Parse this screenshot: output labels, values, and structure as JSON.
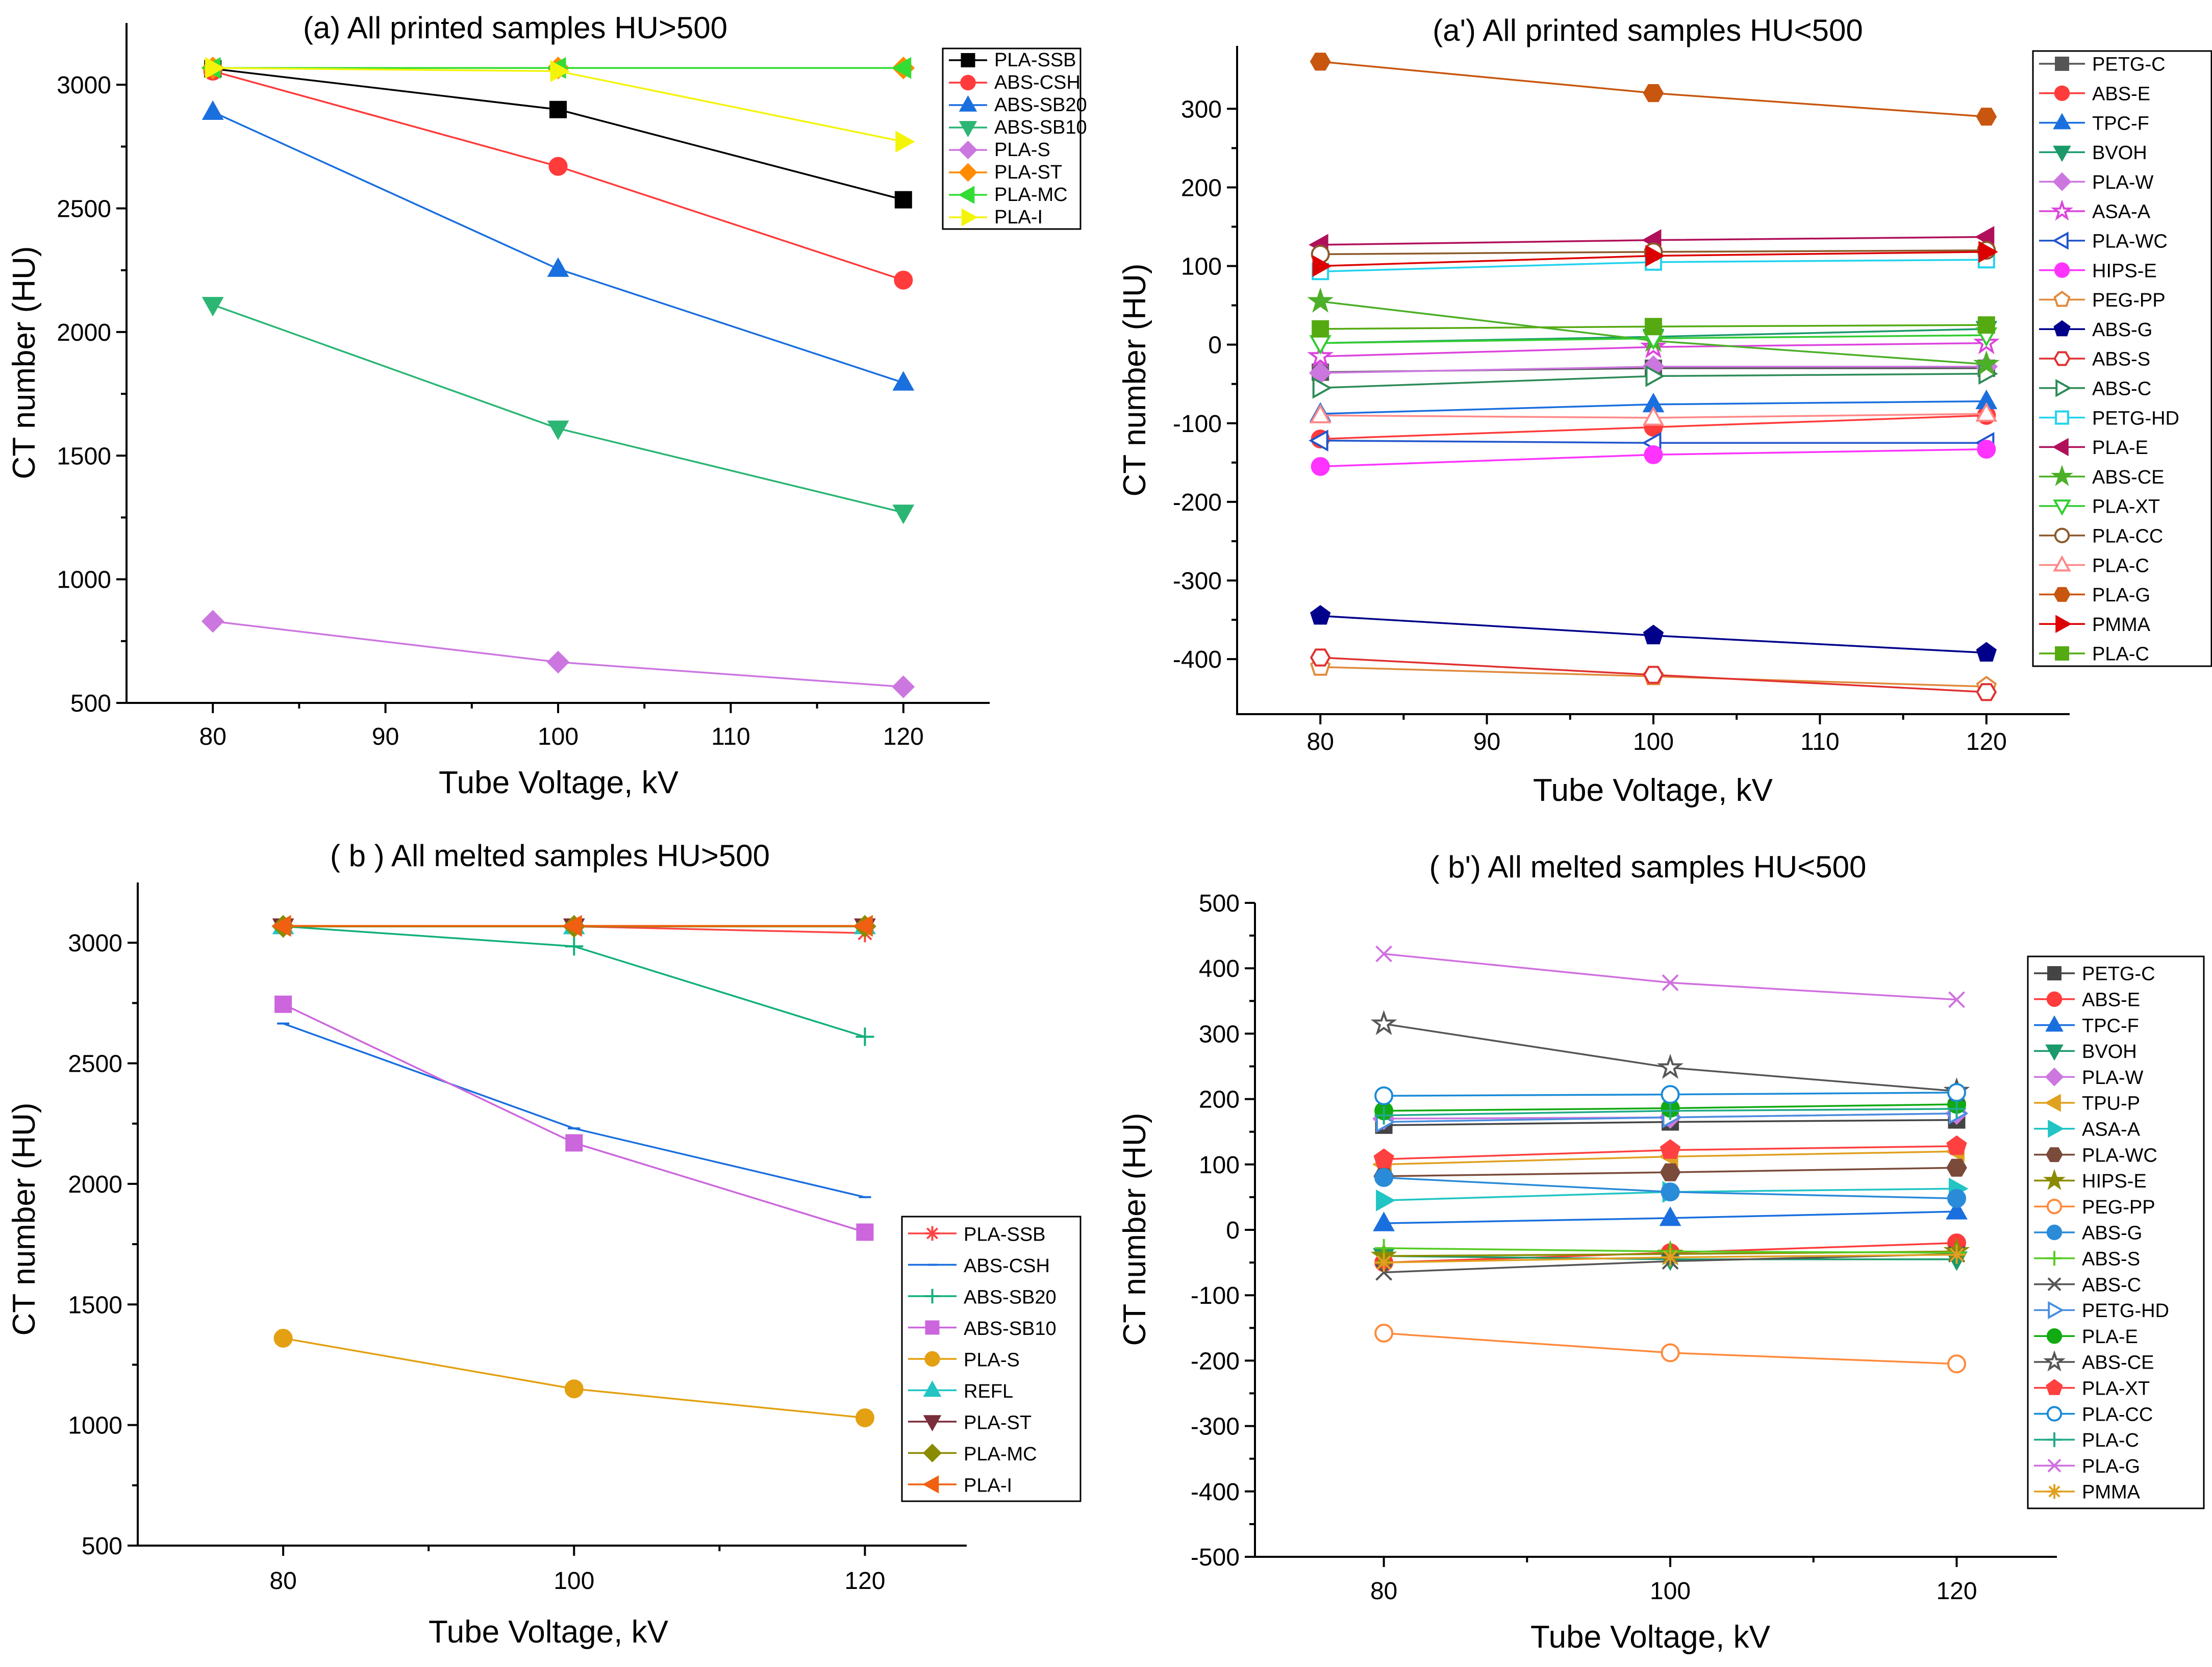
{
  "figure": {
    "background": "#ffffff"
  },
  "chart_data": [
    {
      "id": "a",
      "type": "line",
      "title": "(a) All printed samples HU>500",
      "xlabel": "Tube Voltage, kV",
      "ylabel": "CT number (HU)",
      "xlim": [
        75,
        125
      ],
      "ylim": [
        500,
        3250
      ],
      "xticks": [
        80,
        90,
        100,
        110,
        120
      ],
      "yticks": [
        500,
        1000,
        1500,
        2000,
        2500,
        3000
      ],
      "x": [
        80,
        100,
        120
      ],
      "legend_position": "top-right",
      "series": [
        {
          "name": "PLA-SSB",
          "color": "#000000",
          "marker": "square",
          "values": [
            3065,
            2900,
            2535
          ]
        },
        {
          "name": "ABS-CSH",
          "color": "#ff3b3b",
          "marker": "circle",
          "values": [
            3055,
            2670,
            2210
          ]
        },
        {
          "name": "ABS-SB20",
          "color": "#1a6fdf",
          "marker": "triangle-up",
          "values": [
            2890,
            2255,
            1795
          ]
        },
        {
          "name": "ABS-SB10",
          "color": "#2bb673",
          "marker": "triangle-down",
          "values": [
            2110,
            1610,
            1270
          ]
        },
        {
          "name": "PLA-S",
          "color": "#cc77e0",
          "marker": "diamond",
          "values": [
            830,
            665,
            565
          ]
        },
        {
          "name": "PLA-ST",
          "color": "#ff8c00",
          "marker": "diamond",
          "values": [
            3068,
            3068,
            3068
          ]
        },
        {
          "name": "PLA-MC",
          "color": "#33dd33",
          "marker": "triangle-left",
          "values": [
            3068,
            3068,
            3068
          ]
        },
        {
          "name": "PLA-I",
          "color": "#f4f40a",
          "marker": "triangle-right",
          "values": [
            3068,
            3055,
            2770
          ]
        }
      ]
    },
    {
      "id": "a-prime",
      "type": "line",
      "title": "(a') All printed samples HU<500",
      "xlabel": "Tube Voltage, kV",
      "ylabel": "CT number (HU)",
      "xlim": [
        75,
        125
      ],
      "ylim": [
        -470,
        380
      ],
      "xticks": [
        80,
        90,
        100,
        110,
        120
      ],
      "yticks": [
        -400,
        -300,
        -200,
        -100,
        0,
        100,
        200,
        300
      ],
      "x": [
        80,
        100,
        120
      ],
      "legend_position": "right",
      "series": [
        {
          "name": "PETG-C",
          "color": "#555555",
          "marker": "square",
          "values": [
            -35,
            -30,
            -30
          ]
        },
        {
          "name": "ABS-E",
          "color": "#ff3b3b",
          "marker": "circle",
          "values": [
            -120,
            -105,
            -90
          ]
        },
        {
          "name": "TPC-F",
          "color": "#1a6fdf",
          "marker": "triangle-up",
          "values": [
            -88,
            -76,
            -72
          ]
        },
        {
          "name": "BVOH",
          "color": "#1a9a6a",
          "marker": "triangle-down",
          "values": [
            2,
            10,
            20
          ]
        },
        {
          "name": "PLA-W",
          "color": "#cc77e0",
          "marker": "diamond",
          "values": [
            -36,
            -28,
            -28
          ]
        },
        {
          "name": "ASA-A",
          "color": "#dd44dd",
          "marker": "star-open",
          "values": [
            -15,
            -3,
            2
          ]
        },
        {
          "name": "PLA-WC",
          "color": "#2255cc",
          "marker": "triangle-left-open",
          "values": [
            -122,
            -125,
            -125
          ]
        },
        {
          "name": "HIPS-E",
          "color": "#ff33ff",
          "marker": "circle",
          "values": [
            -155,
            -140,
            -133
          ]
        },
        {
          "name": "PEG-PP",
          "color": "#e08a3c",
          "marker": "pentagon-open",
          "values": [
            -410,
            -422,
            -435
          ]
        },
        {
          "name": "ABS-G",
          "color": "#00008b",
          "marker": "pentagon",
          "values": [
            -345,
            -370,
            -392
          ]
        },
        {
          "name": "ABS-S",
          "color": "#e03030",
          "marker": "hexagon-open",
          "values": [
            -398,
            -420,
            -442
          ]
        },
        {
          "name": "ABS-C",
          "color": "#2e8b57",
          "marker": "triangle-right-open",
          "values": [
            -55,
            -40,
            -37
          ]
        },
        {
          "name": "PETG-HD",
          "color": "#22d3ee",
          "marker": "square-open",
          "values": [
            93,
            105,
            108
          ]
        },
        {
          "name": "PLA-E",
          "color": "#b0105a",
          "marker": "triangle-left",
          "values": [
            127,
            133,
            137
          ]
        },
        {
          "name": "ABS-CE",
          "color": "#4caf28",
          "marker": "star",
          "values": [
            55,
            5,
            -25
          ]
        },
        {
          "name": "PLA-XT",
          "color": "#33cc33",
          "marker": "triangle-down-open",
          "values": [
            2,
            8,
            12
          ]
        },
        {
          "name": "PLA-CC",
          "color": "#8b5a2b",
          "marker": "circle-open",
          "values": [
            115,
            118,
            120
          ]
        },
        {
          "name": "PLA-C",
          "color": "#ff8888",
          "marker": "triangle-up-open",
          "values": [
            -90,
            -93,
            -88
          ]
        },
        {
          "name": "PLA-G",
          "color": "#c8560f",
          "marker": "hexagon",
          "values": [
            360,
            320,
            290
          ]
        },
        {
          "name": "PMMA",
          "color": "#dd0000",
          "marker": "triangle-right",
          "values": [
            100,
            113,
            118
          ]
        },
        {
          "name": "PLA-C",
          "color": "#55aa11",
          "marker": "square",
          "values": [
            20,
            23,
            25
          ]
        }
      ]
    },
    {
      "id": "b",
      "type": "line",
      "title": "( b ) All melted samples HU>500",
      "xlabel": "Tube Voltage,  kV",
      "ylabel": "CT number (HU)",
      "xlim": [
        70,
        127
      ],
      "ylim": [
        500,
        3250
      ],
      "xticks": [
        80,
        100,
        120
      ],
      "minor_xticks": [
        90,
        110
      ],
      "yticks": [
        500,
        1000,
        1500,
        2000,
        2500,
        3000
      ],
      "x": [
        80,
        100,
        120
      ],
      "legend_position": "bottom-right",
      "series": [
        {
          "name": "PLA-SSB",
          "color": "#ff4444",
          "marker": "asterisk",
          "values": [
            3068,
            3068,
            3040
          ]
        },
        {
          "name": "ABS-CSH",
          "color": "#1a6fdf",
          "marker": "dash",
          "values": [
            2665,
            2230,
            1945
          ]
        },
        {
          "name": "ABS-SB20",
          "color": "#12b07a",
          "marker": "plus",
          "values": [
            3068,
            2985,
            2610
          ]
        },
        {
          "name": "ABS-SB10",
          "color": "#cc66dd",
          "marker": "square",
          "values": [
            2745,
            2170,
            1800
          ]
        },
        {
          "name": "PLA-S",
          "color": "#e3a012",
          "marker": "circle",
          "values": [
            1360,
            1150,
            1030
          ]
        },
        {
          "name": "REFL",
          "color": "#22c4c4",
          "marker": "triangle-up",
          "values": [
            3068,
            3068,
            3068
          ]
        },
        {
          "name": "PLA-ST",
          "color": "#7a2d3a",
          "marker": "triangle-down",
          "values": [
            3068,
            3068,
            3068
          ]
        },
        {
          "name": "PLA-MC",
          "color": "#8b8b00",
          "marker": "diamond",
          "values": [
            3068,
            3068,
            3068
          ]
        },
        {
          "name": "PLA-I",
          "color": "#f06010",
          "marker": "triangle-left",
          "values": [
            3070,
            3070,
            3070
          ]
        }
      ]
    },
    {
      "id": "b-prime",
      "type": "line",
      "title": "( b') All melted samples HU<500",
      "xlabel": "Tube Voltage,  kV",
      "ylabel": "CT number (HU)",
      "xlim": [
        71,
        127
      ],
      "ylim": [
        -500,
        500
      ],
      "xticks": [
        80,
        100,
        120
      ],
      "minor_xticks": [
        90,
        110
      ],
      "yticks": [
        -500,
        -400,
        -300,
        -200,
        -100,
        0,
        100,
        200,
        300,
        400,
        500
      ],
      "x": [
        80,
        100,
        120
      ],
      "legend_position": "right",
      "series": [
        {
          "name": "PETG-C",
          "color": "#444444",
          "marker": "square",
          "values": [
            160,
            165,
            168
          ]
        },
        {
          "name": "ABS-E",
          "color": "#ff3b3b",
          "marker": "circle",
          "values": [
            -50,
            -35,
            -20
          ]
        },
        {
          "name": "TPC-F",
          "color": "#1a6fdf",
          "marker": "triangle-up",
          "values": [
            10,
            18,
            28
          ]
        },
        {
          "name": "BVOH",
          "color": "#1a9a6a",
          "marker": "triangle-down",
          "values": [
            -40,
            -45,
            -45
          ]
        },
        {
          "name": "PLA-W",
          "color": "#cc77e0",
          "marker": "diamond",
          "values": [
            170,
            172,
            178
          ]
        },
        {
          "name": "TPU-P",
          "color": "#e0a020",
          "marker": "triangle-left",
          "values": [
            100,
            112,
            120
          ]
        },
        {
          "name": "ASA-A",
          "color": "#22c4c4",
          "marker": "triangle-right",
          "values": [
            45,
            58,
            63
          ]
        },
        {
          "name": "PLA-WC",
          "color": "#7a4a3a",
          "marker": "hexagon",
          "values": [
            82,
            88,
            95
          ]
        },
        {
          "name": "HIPS-E",
          "color": "#8b8b00",
          "marker": "star",
          "values": [
            -40,
            -37,
            -33
          ]
        },
        {
          "name": "PEG-PP",
          "color": "#ff8a3c",
          "marker": "circle-open",
          "values": [
            -158,
            -188,
            -205
          ]
        },
        {
          "name": "ABS-G",
          "color": "#2a8bd8",
          "marker": "circle",
          "values": [
            80,
            58,
            48
          ]
        },
        {
          "name": "ABS-S",
          "color": "#55cc22",
          "marker": "plus",
          "values": [
            -28,
            -33,
            -35
          ]
        },
        {
          "name": "ABS-C",
          "color": "#555555",
          "marker": "cross",
          "values": [
            -65,
            -48,
            -37
          ]
        },
        {
          "name": "PETG-HD",
          "color": "#4a8ee0",
          "marker": "triangle-right-open",
          "values": [
            165,
            172,
            178
          ]
        },
        {
          "name": "PLA-E",
          "color": "#11aa11",
          "marker": "circle",
          "values": [
            182,
            186,
            192
          ]
        },
        {
          "name": "ABS-CE",
          "color": "#555555",
          "marker": "star-open",
          "values": [
            315,
            248,
            212
          ]
        },
        {
          "name": "PLA-XT",
          "color": "#ff4040",
          "marker": "pentagon",
          "values": [
            108,
            122,
            128
          ]
        },
        {
          "name": "PLA-CC",
          "color": "#1a8bd8",
          "marker": "circle-open",
          "values": [
            205,
            207,
            210
          ]
        },
        {
          "name": "PLA-C",
          "color": "#20aa88",
          "marker": "plus",
          "values": [
            175,
            182,
            185
          ]
        },
        {
          "name": "PLA-G",
          "color": "#d070e0",
          "marker": "cross",
          "values": [
            422,
            378,
            352
          ]
        },
        {
          "name": "PMMA",
          "color": "#e0a020",
          "marker": "asterisk",
          "values": [
            -50,
            -42,
            -38
          ]
        }
      ]
    }
  ]
}
